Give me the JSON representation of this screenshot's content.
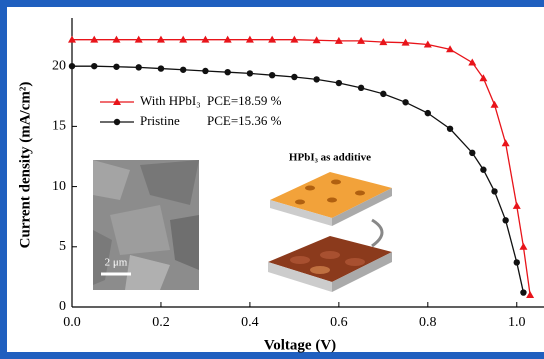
{
  "chart_data": {
    "type": "line",
    "xlabel": "Voltage (V)",
    "ylabel": "Current density (mA/cm²)",
    "xlim": [
      0,
      1.05
    ],
    "ylim": [
      0,
      24
    ],
    "xticks": [
      {
        "value": 0,
        "label": "0.0"
      },
      0.2,
      0.4,
      0.6,
      0.8,
      {
        "value": 1,
        "label": "1.0"
      }
    ],
    "yticks": [
      0,
      5,
      10,
      15,
      20
    ],
    "series": [
      {
        "name": "With HPbI₃",
        "annotation": "PCE=18.59 %",
        "color": "#e8141a",
        "marker": "triangle",
        "x": [
          0,
          0.05,
          0.1,
          0.15,
          0.2,
          0.25,
          0.3,
          0.35,
          0.4,
          0.45,
          0.5,
          0.55,
          0.6,
          0.65,
          0.7,
          0.75,
          0.8,
          0.85,
          0.9,
          0.925,
          0.95,
          0.975,
          1,
          1.015,
          1.03
        ],
        "values": [
          22.2,
          22.2,
          22.2,
          22.2,
          22.2,
          22.2,
          22.2,
          22.2,
          22.2,
          22.2,
          22.2,
          22.15,
          22.1,
          22.1,
          22.0,
          21.95,
          21.8,
          21.4,
          20.3,
          19.0,
          16.8,
          13.6,
          8.4,
          5.0,
          1.0
        ]
      },
      {
        "name": "Pristine",
        "annotation": "PCE=15.36 %",
        "color": "#111111",
        "marker": "circle",
        "x": [
          0,
          0.05,
          0.1,
          0.15,
          0.2,
          0.25,
          0.3,
          0.35,
          0.4,
          0.45,
          0.5,
          0.55,
          0.6,
          0.65,
          0.7,
          0.75,
          0.8,
          0.85,
          0.9,
          0.925,
          0.95,
          0.975,
          1,
          1.015
        ],
        "values": [
          20.0,
          20.0,
          19.95,
          19.9,
          19.8,
          19.7,
          19.6,
          19.5,
          19.4,
          19.25,
          19.1,
          18.9,
          18.6,
          18.2,
          17.7,
          17.0,
          16.1,
          14.8,
          12.8,
          11.4,
          9.6,
          7.2,
          3.7,
          1.2
        ]
      }
    ],
    "insets": {
      "scale_bar": "2 μm",
      "schematic_title": "HPbI₃ as additive"
    }
  }
}
